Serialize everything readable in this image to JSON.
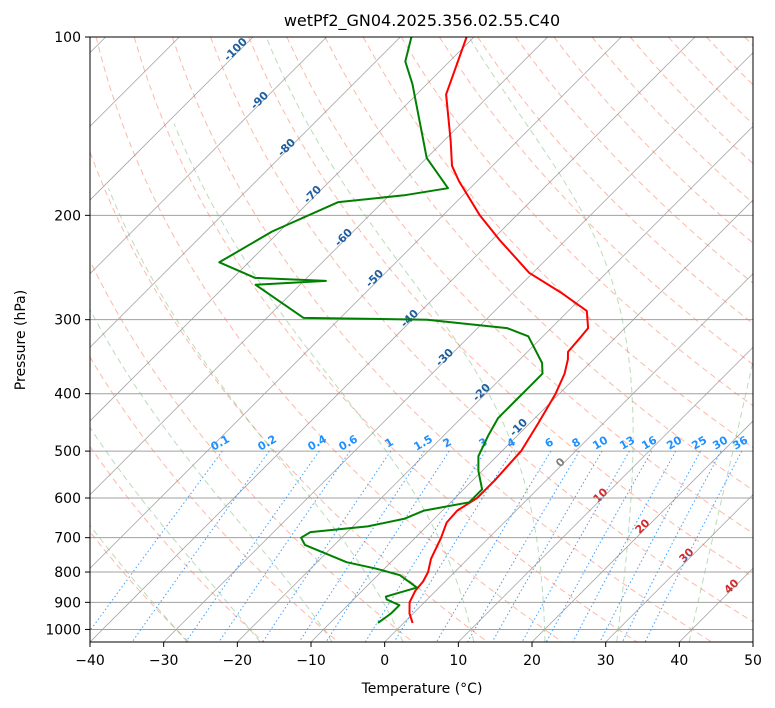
{
  "chart_data": {
    "type": "line",
    "title": "wetPf2_GN04.2025.356.02.55.C40",
    "xlabel": "Temperature (°C)",
    "ylabel": "Pressure (hPa)",
    "xlim": [
      -40,
      50
    ],
    "ylim": [
      1050,
      100
    ],
    "y_scale": "log",
    "x_ticks": [
      -40,
      -30,
      -20,
      -10,
      0,
      10,
      20,
      30,
      40,
      50
    ],
    "y_ticks": [
      100,
      200,
      300,
      400,
      500,
      600,
      700,
      800,
      900,
      1000
    ],
    "grid": true,
    "skew": true,
    "series": [
      {
        "color": "#ff0000",
        "points": [
          [
            1.2,
            975
          ],
          [
            -0.5,
            940
          ],
          [
            -2.0,
            900
          ],
          [
            -2.8,
            860
          ],
          [
            -3.0,
            830
          ],
          [
            -3.6,
            800
          ],
          [
            -5.0,
            760
          ],
          [
            -6.5,
            700
          ],
          [
            -7.8,
            660
          ],
          [
            -8.0,
            630
          ],
          [
            -7.0,
            600
          ],
          [
            -7.0,
            560
          ],
          [
            -7.4,
            500
          ],
          [
            -8.8,
            450
          ],
          [
            -10.5,
            400
          ],
          [
            -12.0,
            370
          ],
          [
            -13.5,
            350
          ],
          [
            -14.5,
            340
          ],
          [
            -14.8,
            320
          ],
          [
            -15.0,
            310
          ],
          [
            -17.5,
            290
          ],
          [
            -23.5,
            270
          ],
          [
            -30.5,
            250
          ],
          [
            -39,
            220
          ],
          [
            -45,
            200
          ],
          [
            -52.5,
            175
          ],
          [
            -55.5,
            165
          ],
          [
            -59,
            150
          ],
          [
            -66,
            125
          ],
          [
            -71,
            100
          ]
        ]
      },
      {
        "color": "#008000",
        "points": [
          [
            -3.5,
            975
          ],
          [
            -3.0,
            940
          ],
          [
            -3.0,
            910
          ],
          [
            -5.5,
            890
          ],
          [
            -6.0,
            880
          ],
          [
            -4.0,
            860
          ],
          [
            -3.0,
            850
          ],
          [
            -7.0,
            810
          ],
          [
            -11.0,
            790
          ],
          [
            -16.0,
            770
          ],
          [
            -24.0,
            720
          ],
          [
            -25.5,
            700
          ],
          [
            -25.0,
            685
          ],
          [
            -18.0,
            670
          ],
          [
            -14.0,
            650
          ],
          [
            -12.5,
            630
          ],
          [
            -7.5,
            610
          ],
          [
            -7.5,
            580
          ],
          [
            -10.5,
            540
          ],
          [
            -12.5,
            510
          ],
          [
            -14.0,
            470
          ],
          [
            -15.0,
            440
          ],
          [
            -15.0,
            410
          ],
          [
            -15.0,
            390
          ],
          [
            -15.0,
            370
          ],
          [
            -16.5,
            355
          ],
          [
            -22.0,
            320
          ],
          [
            -26.0,
            310
          ],
          [
            -38.0,
            300
          ],
          [
            -55.0,
            298
          ],
          [
            -66.0,
            262
          ],
          [
            -57.0,
            258
          ],
          [
            -67.0,
            255
          ],
          [
            -74.0,
            240
          ],
          [
            -71.0,
            213
          ],
          [
            -66.0,
            190
          ],
          [
            -58.0,
            185
          ],
          [
            -53.0,
            180
          ],
          [
            -60.0,
            160
          ],
          [
            -72.0,
            120
          ],
          [
            -76.0,
            110
          ],
          [
            -78.5,
            100
          ]
        ]
      }
    ],
    "isotherm_labels": [
      "-100",
      "-90",
      "-80",
      "-70",
      "-60",
      "-50",
      "-40",
      "-30",
      "-20",
      "-10"
    ],
    "mixing_ratio_labels": [
      "0.1",
      "0.2",
      "0.4",
      "0.6",
      "1",
      "1.5",
      "2",
      "3",
      "4",
      "6",
      "8",
      "10",
      "13",
      "16",
      "20",
      "25",
      "30",
      "36"
    ],
    "moist_adiabat_labels": [
      "0",
      "10",
      "20",
      "30",
      "40"
    ],
    "colors": {
      "temperature": "#ff0000",
      "dewpoint": "#008000",
      "isotherm_label": "#1f5fa0",
      "mixing_ratio": "#1e90ff",
      "moist_label": "#d62728",
      "zero_label": "#808080",
      "dry_adiabat": "#fa8060",
      "moist_adiabat": "#66b266",
      "isotherm": "#808080"
    }
  }
}
